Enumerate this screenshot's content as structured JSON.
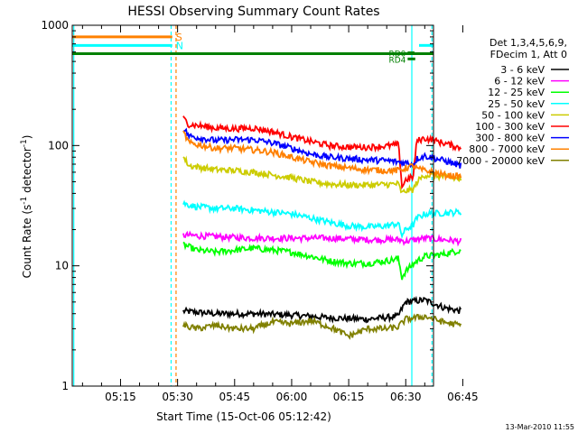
{
  "chart_data": {
    "type": "line",
    "title": "HESSI Observing Summary Count Rates",
    "xlabel": "Start Time (15-Oct-06 05:12:42)",
    "ylabel_parts": [
      "Count Rate (s",
      "-1",
      " detector",
      "-1",
      ")"
    ],
    "x_start": "05:12:42",
    "xlim_minutes": [
      2.3,
      97.3
    ],
    "yscale": "log",
    "ylim": [
      1,
      1000
    ],
    "x_ticks": [
      {
        "m": 15,
        "label": "05:15"
      },
      {
        "m": 30,
        "label": "05:30"
      },
      {
        "m": 45,
        "label": "05:45"
      },
      {
        "m": 60,
        "label": "06:00"
      },
      {
        "m": 75,
        "label": "06:15"
      },
      {
        "m": 90,
        "label": "06:30"
      },
      {
        "m": 105,
        "label": "06:45"
      }
    ],
    "y_ticks": [
      {
        "v": 1,
        "label": "1"
      },
      {
        "v": 10,
        "label": "10"
      },
      {
        "v": 100,
        "label": "100"
      },
      {
        "v": 1000,
        "label": "1000"
      }
    ],
    "legend_header": [
      "Det 1,3,4,5,6,9,",
      "FDecim 1, Att 0"
    ],
    "footer": "13-Mar-2010 11:55",
    "series": [
      {
        "name": "3 - 6 keV",
        "color": "#000000",
        "x": [
          31.5,
          40,
          50,
          60,
          70,
          80,
          88,
          90,
          95,
          100,
          104.5
        ],
        "y": [
          4.2,
          4.0,
          4.0,
          3.9,
          3.7,
          3.6,
          3.8,
          5.0,
          5.2,
          4.5,
          4.2
        ]
      },
      {
        "name": "6 - 12 keV",
        "color": "#ff00ff",
        "x": [
          31.5,
          40,
          50,
          60,
          70,
          80,
          88,
          90,
          95,
          100,
          104.5
        ],
        "y": [
          18,
          17.5,
          17,
          17,
          17,
          16.5,
          16.5,
          16,
          17,
          16.5,
          16
        ]
      },
      {
        "name": "12 - 25 keV",
        "color": "#00ff00",
        "x": [
          31.5,
          35,
          40,
          45,
          50,
          55,
          60,
          65,
          70,
          75,
          80,
          85,
          88,
          89,
          90,
          93,
          95,
          100,
          104.5
        ],
        "y": [
          15,
          13.5,
          13,
          13.5,
          14,
          13.5,
          13,
          12,
          11,
          10.5,
          10.5,
          11,
          11.5,
          8,
          9,
          11,
          12,
          12.5,
          13.5
        ]
      },
      {
        "name": "25 - 50 keV",
        "color": "#00ffff",
        "x": [
          31.5,
          35,
          40,
          45,
          50,
          55,
          60,
          65,
          70,
          75,
          80,
          85,
          88,
          89,
          90,
          92,
          93,
          95,
          100,
          104.5
        ],
        "y": [
          33,
          31,
          30,
          30,
          29,
          28,
          27,
          25,
          23,
          21.5,
          21,
          21.5,
          22.5,
          18,
          20,
          22,
          25,
          27,
          27.5,
          28
        ]
      },
      {
        "name": "50 - 100 keV",
        "color": "#cccc00",
        "x": [
          31.5,
          33,
          40,
          45,
          50,
          55,
          60,
          65,
          70,
          75,
          80,
          85,
          88,
          89,
          90,
          92,
          93,
          95,
          100,
          104.5
        ],
        "y": [
          80,
          68,
          63,
          62,
          60,
          57,
          54,
          50,
          48,
          47,
          47,
          47.5,
          48,
          40,
          42,
          43,
          50,
          57,
          55,
          52
        ]
      },
      {
        "name": "100 - 300 keV",
        "color": "#ff0000",
        "x": [
          31.5,
          33,
          40,
          45,
          50,
          55,
          60,
          65,
          70,
          75,
          80,
          85,
          88,
          89,
          90,
          92,
          93,
          95,
          100,
          104.5
        ],
        "y": [
          168,
          150,
          140,
          138,
          140,
          130,
          118,
          108,
          100,
          97,
          97,
          99,
          102,
          45,
          52,
          55,
          110,
          115,
          105,
          95
        ]
      },
      {
        "name": "300 - 800 keV",
        "color": "#0000ff",
        "x": [
          31.5,
          33,
          40,
          45,
          50,
          55,
          60,
          65,
          70,
          75,
          80,
          85,
          88,
          90,
          92,
          93,
          95,
          100,
          104.5
        ],
        "y": [
          140,
          120,
          110,
          112,
          112,
          105,
          95,
          85,
          80,
          78,
          76,
          75,
          73,
          72,
          70,
          78,
          82,
          75,
          68
        ]
      },
      {
        "name": "800 - 7000 keV",
        "color": "#ff8000",
        "x": [
          31.5,
          33,
          40,
          45,
          50,
          55,
          60,
          65,
          70,
          75,
          80,
          85,
          88,
          90,
          92,
          93,
          95,
          100,
          104.5
        ],
        "y": [
          128,
          105,
          95,
          95,
          92,
          88,
          80,
          73,
          68,
          65,
          63,
          62,
          62,
          65,
          68,
          64,
          62,
          57,
          55
        ]
      },
      {
        "name": "7000 - 20000 keV",
        "color": "#808000",
        "x": [
          31.5,
          35,
          40,
          45,
          50,
          55,
          60,
          65,
          70,
          75,
          80,
          85,
          88,
          90,
          95,
          100,
          104.5
        ],
        "y": [
          3.2,
          3.0,
          3.2,
          3.0,
          3.0,
          3.4,
          3.3,
          3.5,
          3.1,
          2.6,
          3.0,
          3.0,
          3.1,
          3.6,
          3.8,
          3.4,
          3.2
        ]
      }
    ],
    "flag_lines": [
      {
        "label": "S",
        "color": "#ff8000",
        "value": 800,
        "x_from_min": 2.3,
        "x_to_min": 28.6
      },
      {
        "label": "N",
        "color": "#00ffff",
        "value": 680,
        "x_from_min": 2.3,
        "x_to_min": 28.6
      },
      {
        "label": "",
        "color": "#00ffff",
        "value": 680,
        "x_from_min": 93.5,
        "x_to_min": 97.3
      },
      {
        "label": "",
        "color": "#008000",
        "value": 580,
        "x_from_min": 2.3,
        "x_to_min": 97.3
      }
    ],
    "rd_markers": [
      {
        "label": "RD4",
        "value": 525,
        "x_from_min": 90.5,
        "x_to_min": 92.5
      },
      {
        "label": "RD0",
        "value": 590,
        "x_from_min": 90.5,
        "x_to_min": 92.3
      }
    ],
    "vlines": [
      {
        "m": 2.7,
        "color": "#00ffff",
        "style": "solid"
      },
      {
        "m": 28.3,
        "color": "#00ffff",
        "style": "dashed"
      },
      {
        "m": 29.6,
        "color": "#ff8000",
        "style": "dashed"
      },
      {
        "m": 91.6,
        "color": "#00ffff",
        "style": "solid"
      },
      {
        "m": 96.9,
        "color": "#00ffff",
        "style": "dashed"
      }
    ]
  }
}
